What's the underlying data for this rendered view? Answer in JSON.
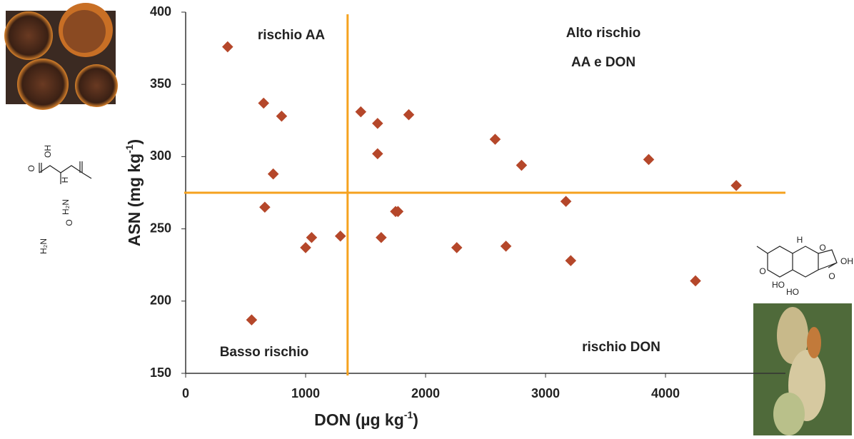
{
  "chart_data": {
    "type": "scatter",
    "xlabel": [
      "DON (µg kg",
      "-1",
      ")"
    ],
    "ylabel": [
      "ASN (mg kg",
      "-1",
      ")"
    ],
    "series": [
      {
        "color": "#b5472a",
        "x": [
          350,
          650,
          800,
          730,
          660,
          1050,
          1000,
          1290,
          550,
          1460,
          1600,
          1860,
          1600,
          1750,
          1770,
          1630,
          2260,
          2580,
          2800,
          2670,
          3170,
          3210,
          3860,
          4590,
          4250
        ],
        "values": [
          376,
          337,
          328,
          288,
          265,
          244,
          237,
          245,
          187,
          331,
          323,
          329,
          302,
          262,
          262,
          244,
          237,
          312,
          294,
          238,
          269,
          228,
          298,
          280,
          214
        ]
      }
    ],
    "xlim": [
      0,
      5000
    ],
    "xticks": [
      0,
      1000,
      2000,
      3000,
      4000
    ],
    "ylim": [
      150,
      400
    ],
    "yticks": [
      150,
      200,
      250,
      300,
      350,
      400
    ],
    "threshold_x": 1350,
    "threshold_y": 275,
    "threshold_color": "#f5a21f",
    "annotations": [
      "rischio AA",
      "Alto rischio",
      "AA e DON",
      "Basso rischio",
      "rischio DON"
    ]
  },
  "figures": {
    "asn_labels": [
      "OH",
      "O",
      "H",
      "H₂N",
      "O",
      "H₂N"
    ],
    "don_labels": [
      "H",
      "O",
      "OH",
      "O",
      "HO",
      "HO",
      "O"
    ]
  }
}
